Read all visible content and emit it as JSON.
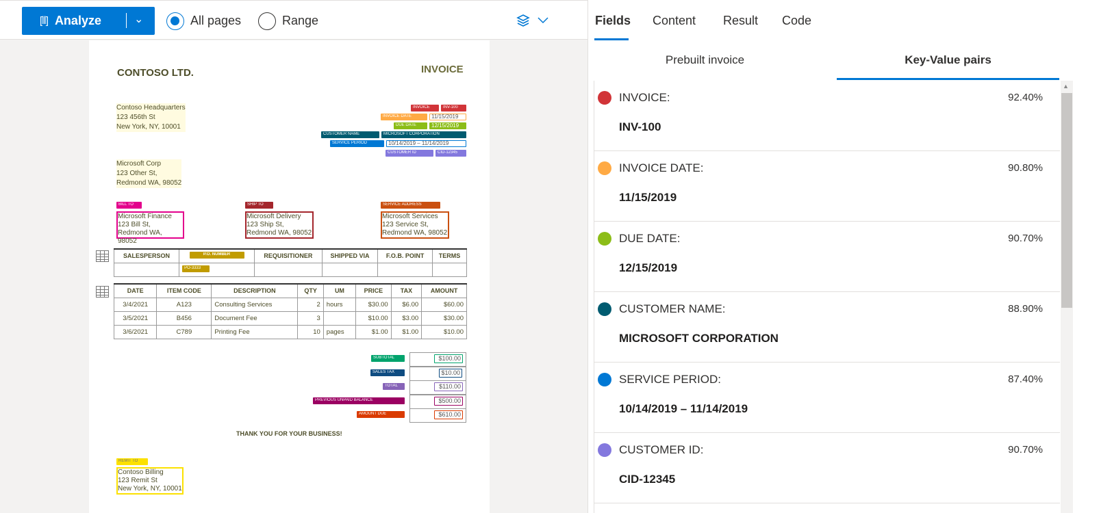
{
  "toolbar": {
    "analyze_label": "Analyze",
    "page_options": [
      {
        "label": "All pages",
        "selected": true
      },
      {
        "label": "Range",
        "selected": false
      }
    ],
    "layers_icon": "layers-icon"
  },
  "document": {
    "company": "CONTOSO LTD.",
    "title": "INVOICE",
    "from": [
      "Contoso Headquarters",
      "123 456th St",
      "New York, NY, 10001"
    ],
    "to": [
      "Microsoft Corp",
      "123 Other St,",
      "Redmond WA, 98052"
    ],
    "fields": [
      {
        "key": "INVOICE",
        "value": "INV-100",
        "color": "#d13438"
      },
      {
        "key": "INVOICE DATE",
        "value": "11/15/2019",
        "color": "#ffaa44"
      },
      {
        "key": "DUE DATE",
        "value": "12/15/2019",
        "color": "#8cbd18"
      },
      {
        "key": "CUSTOMER NAME",
        "value": "MICROSOFT CORPORATION",
        "color": "#005b70"
      },
      {
        "key": "SERVICE PERIOD",
        "value": "10/14/2019 – 11/14/2019",
        "color": "#0078d4"
      },
      {
        "key": "CUSTOMER ID",
        "value": "CID-12345",
        "color": "#8378de"
      }
    ],
    "addresses": [
      {
        "label": "BILL TO",
        "lines": [
          "Microsoft Finance",
          "123 Bill St,",
          "Redmond WA, 98052"
        ],
        "color": "#e3008c"
      },
      {
        "label": "SHIP TO",
        "lines": [
          "Microsoft Delivery",
          "123 Ship St,",
          "Redmond WA, 98052"
        ],
        "color": "#a4262c"
      },
      {
        "label": "SERVICE ADDRESS",
        "lines": [
          "Microsoft Services",
          "123 Service St,",
          "Redmond WA, 98052"
        ],
        "color": "#ca5010"
      }
    ],
    "order_table": {
      "headers": [
        "SALESPERSON",
        "P.O. NUMBER",
        "REQUISITIONER",
        "SHIPPED VIA",
        "F.O.B. POINT",
        "TERMS"
      ],
      "po_value": "PO-3333",
      "po_color": "#c19c00"
    },
    "items_table": {
      "headers": [
        "DATE",
        "ITEM CODE",
        "DESCRIPTION",
        "QTY",
        "UM",
        "PRICE",
        "TAX",
        "AMOUNT"
      ],
      "rows": [
        [
          "3/4/2021",
          "A123",
          "Consulting Services",
          "2",
          "hours",
          "$30.00",
          "$6.00",
          "$60.00"
        ],
        [
          "3/5/2021",
          "B456",
          "Document Fee",
          "3",
          "",
          "$10.00",
          "$3.00",
          "$30.00"
        ],
        [
          "3/6/2021",
          "C789",
          "Printing Fee",
          "10",
          "pages",
          "$1.00",
          "$1.00",
          "$10.00"
        ]
      ]
    },
    "totals": [
      {
        "label": "SUBTOTAL",
        "value": "$100.00",
        "color": "#00a36c"
      },
      {
        "label": "SALES TAX",
        "value": "$10.00",
        "color": "#0f4c81"
      },
      {
        "label": "TOTAL",
        "value": "$110.00",
        "color": "#8764b8"
      },
      {
        "label": "PREVIOUS UNPAID BALANCE",
        "value": "$500.00",
        "color": "#9b0062"
      },
      {
        "label": "AMOUNT DUE",
        "value": "$610.00",
        "color": "#da3b01"
      }
    ],
    "thanks": "THANK YOU FOR YOUR BUSINESS!",
    "remit": {
      "label": "REMIT TO",
      "lines": [
        "Contoso Billing",
        "123 Remit St",
        "New York, NY, 10001"
      ],
      "color": "#fce100"
    }
  },
  "panel": {
    "tabs": [
      {
        "label": "Fields",
        "selected": true
      },
      {
        "label": "Content"
      },
      {
        "label": "Result"
      },
      {
        "label": "Code"
      }
    ],
    "subtabs": [
      {
        "label": "Prebuilt invoice"
      },
      {
        "label": "Key-Value pairs",
        "selected": true
      }
    ],
    "items": [
      {
        "key": "INVOICE:",
        "confidence": "92.40%",
        "value": "INV-100",
        "color": "#d13438"
      },
      {
        "key": "INVOICE DATE:",
        "confidence": "90.80%",
        "value": "11/15/2019",
        "color": "#ffaa44"
      },
      {
        "key": "DUE DATE:",
        "confidence": "90.70%",
        "value": "12/15/2019",
        "color": "#8cbd18"
      },
      {
        "key": "CUSTOMER NAME:",
        "confidence": "88.90%",
        "value": "MICROSOFT CORPORATION",
        "color": "#005b70"
      },
      {
        "key": "SERVICE PERIOD:",
        "confidence": "87.40%",
        "value": "10/14/2019 – 11/14/2019",
        "color": "#0078d4"
      },
      {
        "key": "CUSTOMER ID:",
        "confidence": "90.70%",
        "value": "CID-12345",
        "color": "#8378de"
      }
    ]
  }
}
